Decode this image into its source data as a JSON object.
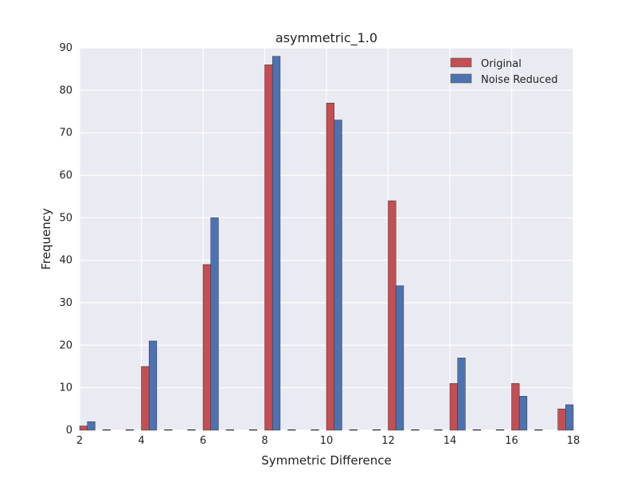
{
  "chart_data": {
    "type": "bar",
    "title": "asymmetric_1.0",
    "xlabel": "Symmetric Difference",
    "ylabel": "Frequency",
    "xlim": [
      2,
      18
    ],
    "ylim": [
      0,
      90
    ],
    "xticks": [
      2,
      4,
      6,
      8,
      10,
      12,
      14,
      16,
      18
    ],
    "yticks": [
      0,
      10,
      20,
      30,
      40,
      50,
      60,
      70,
      80,
      90
    ],
    "grid": true,
    "legend_position": "top-right",
    "bin_width": 0.25,
    "series": [
      {
        "name": "Original",
        "color": "#c44e52",
        "x": [
          2.0,
          2.75,
          3.5,
          4.0,
          4.75,
          5.5,
          6.0,
          6.75,
          7.5,
          8.0,
          8.75,
          9.5,
          10.0,
          10.75,
          11.5,
          12.0,
          12.75,
          13.5,
          14.0,
          14.75,
          15.5,
          16.0,
          16.75,
          17.5
        ],
        "values": [
          1,
          0,
          0,
          15,
          0,
          0,
          39,
          0,
          0,
          86,
          0,
          0,
          77,
          0,
          0,
          54,
          0,
          0,
          11,
          0,
          0,
          11,
          0,
          5
        ]
      },
      {
        "name": "Noise Reduced",
        "color": "#4c72b0",
        "x": [
          2.25,
          2.75,
          3.5,
          4.25,
          4.75,
          5.5,
          6.25,
          6.75,
          7.5,
          8.25,
          8.75,
          9.5,
          10.25,
          10.75,
          11.5,
          12.25,
          12.75,
          13.5,
          14.25,
          14.75,
          15.5,
          16.25,
          16.75,
          17.75
        ],
        "values": [
          2,
          0,
          0,
          21,
          0,
          0,
          50,
          0,
          0,
          88,
          0,
          0,
          73,
          0,
          0,
          34,
          0,
          0,
          17,
          0,
          0,
          8,
          0,
          6
        ]
      }
    ]
  }
}
